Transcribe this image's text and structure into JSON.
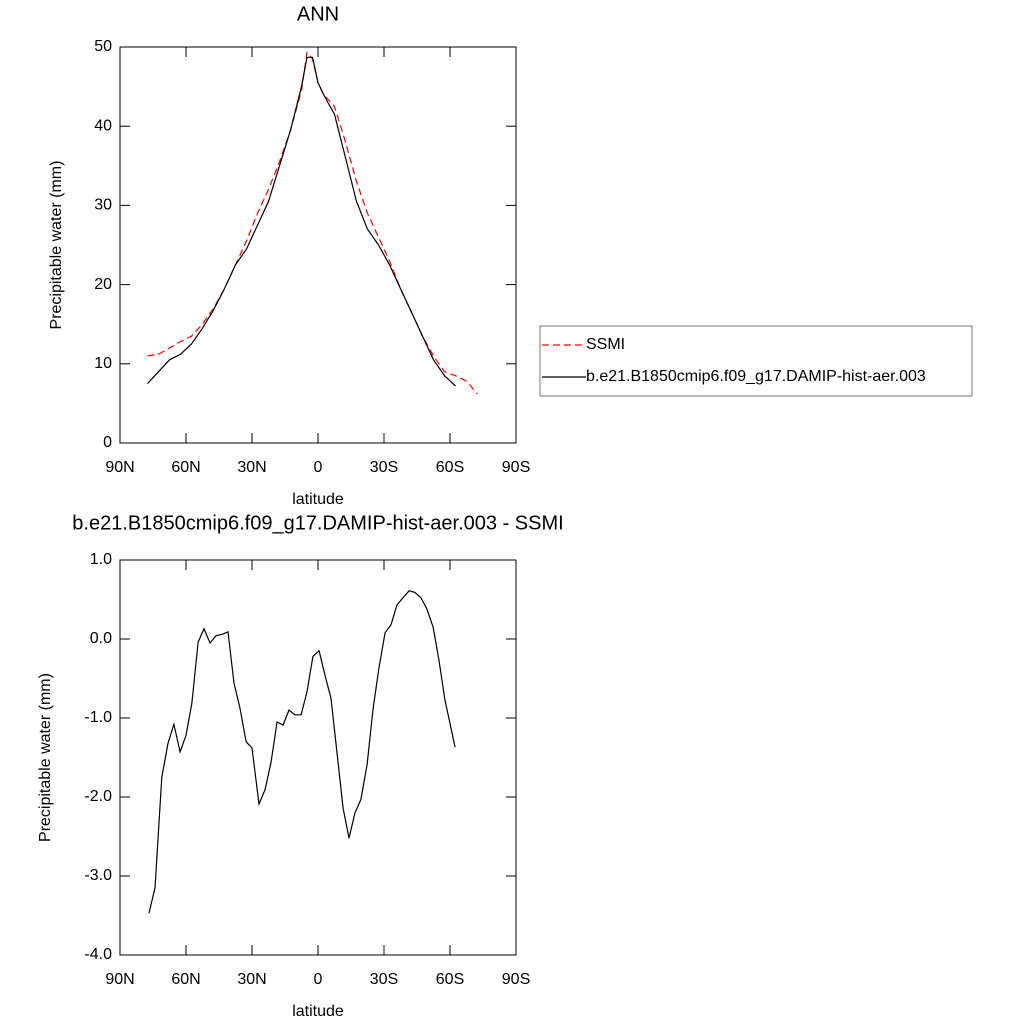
{
  "chart_data": [
    {
      "type": "line",
      "title": "ANN",
      "xlabel": "latitude",
      "ylabel": "Precipitable water (mm)",
      "xlim": [
        90,
        -90
      ],
      "xticks": [
        {
          "value": 90,
          "label": "90N"
        },
        {
          "value": 60,
          "label": "60N"
        },
        {
          "value": 30,
          "label": "30N"
        },
        {
          "value": 0,
          "label": "0"
        },
        {
          "value": -30,
          "label": "30S"
        },
        {
          "value": -60,
          "label": "60S"
        },
        {
          "value": -90,
          "label": "90S"
        }
      ],
      "ylim": [
        0,
        50
      ],
      "yticks": [
        0,
        10,
        20,
        30,
        40,
        50
      ],
      "legend": "right",
      "x": [
        77.5,
        72.5,
        67.5,
        62.5,
        57.5,
        52.5,
        47.5,
        42.5,
        37.5,
        32.5,
        27.5,
        22.5,
        17.5,
        12.5,
        7.5,
        5,
        2.5,
        0,
        -2.5,
        -7.5,
        -12.5,
        -17.5,
        -22.5,
        -27.5,
        -32.5,
        -37.5,
        -42.5,
        -47.5,
        -52.5,
        -57.5,
        -62.5,
        -67.5,
        -72.5
      ],
      "series": [
        {
          "name": "SSMI",
          "color": "#ff0000",
          "dashed": true,
          "values": [
            11.0,
            11.2,
            12.0,
            12.8,
            13.5,
            15.0,
            17.0,
            19.5,
            22.5,
            25.5,
            29.0,
            32.0,
            35.5,
            39.5,
            44.5,
            49.3,
            48.5,
            45.5,
            44.0,
            42.5,
            38.0,
            33.0,
            29.0,
            26.0,
            23.0,
            19.5,
            16.5,
            13.5,
            11.0,
            9.0,
            8.5,
            7.8,
            6.2
          ]
        },
        {
          "name": "b.e21.B1850cmip6.f09_g17.DAMIP-hist-aer.003",
          "color": "#000000",
          "dashed": false,
          "values": [
            7.5,
            9.0,
            10.5,
            11.2,
            12.5,
            14.5,
            16.8,
            19.5,
            22.5,
            24.5,
            27.5,
            30.5,
            35.0,
            39.5,
            45.0,
            48.7,
            48.7,
            45.5,
            44.0,
            41.5,
            36.0,
            30.5,
            27.0,
            25.0,
            22.5,
            19.5,
            16.5,
            13.5,
            10.5,
            8.5,
            7.2,
            null,
            null
          ]
        }
      ]
    },
    {
      "type": "line",
      "title": "b.e21.B1850cmip6.f09_g17.DAMIP-hist-aer.003 - SSMI",
      "xlabel": "latitude",
      "ylabel": "Precipitable water (mm)",
      "xlim": [
        90,
        -90
      ],
      "xticks": [
        {
          "value": 90,
          "label": "90N"
        },
        {
          "value": 60,
          "label": "60N"
        },
        {
          "value": 30,
          "label": "30N"
        },
        {
          "value": 0,
          "label": "0"
        },
        {
          "value": -30,
          "label": "30S"
        },
        {
          "value": -60,
          "label": "60S"
        },
        {
          "value": -90,
          "label": "90S"
        }
      ],
      "ylim": [
        -4,
        1
      ],
      "yticks": [
        {
          "value": -4,
          "label": "-4.0"
        },
        {
          "value": -3,
          "label": "-3.0"
        },
        {
          "value": -2,
          "label": "-2.0"
        },
        {
          "value": -1,
          "label": "-1.0"
        },
        {
          "value": 0,
          "label": "0.0"
        },
        {
          "value": 1,
          "label": "1.0"
        }
      ],
      "x": [
        76.8,
        74.1,
        71.0,
        68.2,
        65.5,
        62.7,
        60.0,
        57.3,
        54.5,
        51.8,
        49.1,
        46.4,
        43.6,
        40.9,
        38.2,
        35.5,
        32.7,
        30.0,
        26.8,
        24.1,
        21.4,
        18.6,
        15.9,
        13.2,
        10.5,
        7.7,
        5.0,
        2.3,
        -0.5,
        -3.2,
        -5.9,
        -8.6,
        -11.4,
        -14.1,
        -16.8,
        -19.5,
        -22.3,
        -25.0,
        -27.7,
        -30.5,
        -33.2,
        -35.9,
        -38.6,
        -41.4,
        -44.1,
        -46.8,
        -49.5,
        -52.3,
        -55.0,
        -57.7,
        -62.3
      ],
      "series": [
        {
          "color": "#000000",
          "dashed": false,
          "values": [
            -3.47,
            -3.15,
            -1.75,
            -1.32,
            -1.08,
            -1.43,
            -1.22,
            -0.81,
            -0.04,
            0.13,
            -0.05,
            0.04,
            0.06,
            0.09,
            -0.56,
            -0.87,
            -1.3,
            -1.38,
            -2.09,
            -1.91,
            -1.57,
            -1.05,
            -1.09,
            -0.9,
            -0.96,
            -0.96,
            -0.67,
            -0.22,
            -0.15,
            -0.46,
            -0.75,
            -1.43,
            -2.14,
            -2.52,
            -2.2,
            -2.03,
            -1.59,
            -0.89,
            -0.37,
            0.08,
            0.18,
            0.43,
            0.52,
            0.61,
            0.59,
            0.52,
            0.38,
            0.15,
            -0.27,
            -0.77,
            -1.37
          ]
        }
      ]
    }
  ]
}
